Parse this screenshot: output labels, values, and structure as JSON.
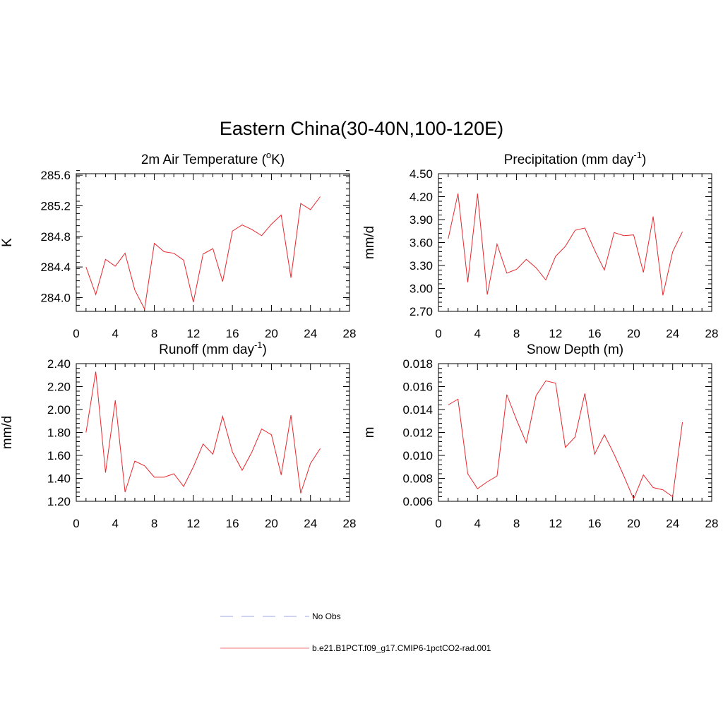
{
  "figure": {
    "title": "Eastern China(30-40N,100-120E)"
  },
  "chart_data": [
    {
      "id": "t2m",
      "type": "line",
      "title": "2m Air Temperature (",
      "title_sup": "o",
      "title_suffix": "K)",
      "xlabel": "",
      "ylabel": "K",
      "xlim": [
        0,
        28
      ],
      "ylim": [
        283.82,
        285.62
      ],
      "xticks": [
        0,
        4,
        8,
        12,
        16,
        20,
        24,
        28
      ],
      "yticks": [
        284.0,
        284.4,
        284.8,
        285.2,
        285.6
      ],
      "ytick_labels": [
        "284.0",
        "284.4",
        "284.8",
        "285.2",
        "285.6"
      ],
      "minor_x": 1,
      "minor_y": 0.08,
      "grid": false,
      "series": [
        {
          "color": "#e8282e",
          "x": [
            1,
            2,
            3,
            4,
            5,
            6,
            7,
            8,
            9,
            10,
            11,
            12,
            13,
            14,
            15,
            16,
            17,
            18,
            19,
            20,
            21,
            22,
            23,
            24,
            25
          ],
          "y": [
            284.4,
            284.04,
            284.5,
            284.41,
            284.58,
            284.1,
            283.85,
            284.71,
            284.6,
            284.58,
            284.49,
            283.94,
            284.57,
            284.64,
            284.21,
            284.87,
            284.95,
            284.89,
            284.81,
            284.96,
            285.08,
            284.26,
            285.23,
            285.15,
            285.32
          ]
        }
      ]
    },
    {
      "id": "precip",
      "type": "line",
      "title": "Precipitation (mm day",
      "title_sup": "-1",
      "title_suffix": ")",
      "xlabel": "",
      "ylabel": "mm/d",
      "xlim": [
        0,
        28
      ],
      "ylim": [
        2.7,
        4.5
      ],
      "xticks": [
        0,
        4,
        8,
        12,
        16,
        20,
        24,
        28
      ],
      "yticks": [
        2.7,
        3.0,
        3.3,
        3.6,
        3.9,
        4.2,
        4.5
      ],
      "ytick_labels": [
        "2.70",
        "3.00",
        "3.30",
        "3.60",
        "3.90",
        "4.20",
        "4.50"
      ],
      "minor_x": 1,
      "minor_y": 0.06,
      "grid": false,
      "series": [
        {
          "color": "#e8282e",
          "x": [
            1,
            2,
            3,
            4,
            5,
            6,
            7,
            8,
            9,
            10,
            11,
            12,
            13,
            14,
            15,
            16,
            17,
            18,
            19,
            20,
            21,
            22,
            23,
            24,
            25
          ],
          "y": [
            3.65,
            4.24,
            3.08,
            4.24,
            2.92,
            3.58,
            3.2,
            3.25,
            3.38,
            3.27,
            3.11,
            3.42,
            3.55,
            3.76,
            3.79,
            3.5,
            3.24,
            3.73,
            3.69,
            3.7,
            3.21,
            3.94,
            2.91,
            3.48,
            3.74
          ]
        }
      ]
    },
    {
      "id": "runoff",
      "type": "line",
      "title": "Runoff (mm day",
      "title_sup": "-1",
      "title_suffix": ")",
      "xlabel": "",
      "ylabel": "mm/d",
      "xlim": [
        0,
        28
      ],
      "ylim": [
        1.2,
        2.4
      ],
      "xticks": [
        0,
        4,
        8,
        12,
        16,
        20,
        24,
        28
      ],
      "yticks": [
        1.2,
        1.4,
        1.6,
        1.8,
        2.0,
        2.2,
        2.4
      ],
      "ytick_labels": [
        "1.20",
        "1.40",
        "1.60",
        "1.80",
        "2.00",
        "2.20",
        "2.40"
      ],
      "minor_x": 1,
      "minor_y": 0.04,
      "grid": false,
      "series": [
        {
          "color": "#e8282e",
          "x": [
            1,
            2,
            3,
            4,
            5,
            6,
            7,
            8,
            9,
            10,
            11,
            12,
            13,
            14,
            15,
            16,
            17,
            18,
            19,
            20,
            21,
            22,
            23,
            24,
            25
          ],
          "y": [
            1.8,
            2.33,
            1.45,
            2.08,
            1.28,
            1.55,
            1.51,
            1.41,
            1.41,
            1.44,
            1.33,
            1.5,
            1.7,
            1.61,
            1.94,
            1.63,
            1.47,
            1.63,
            1.83,
            1.78,
            1.43,
            1.95,
            1.27,
            1.53,
            1.66
          ]
        }
      ]
    },
    {
      "id": "snow",
      "type": "line",
      "title": "Snow Depth (m)",
      "title_sup": "",
      "title_suffix": "",
      "xlabel": "",
      "ylabel": "m",
      "xlim": [
        0,
        28
      ],
      "ylim": [
        0.006,
        0.018
      ],
      "xticks": [
        0,
        4,
        8,
        12,
        16,
        20,
        24,
        28
      ],
      "yticks": [
        0.006,
        0.008,
        0.01,
        0.012,
        0.014,
        0.016,
        0.018
      ],
      "ytick_labels": [
        "0.006",
        "0.008",
        "0.010",
        "0.012",
        "0.014",
        "0.016",
        "0.018"
      ],
      "minor_x": 1,
      "minor_y": 0.0004,
      "grid": false,
      "series": [
        {
          "color": "#e8282e",
          "x": [
            1,
            2,
            3,
            4,
            5,
            6,
            7,
            8,
            9,
            10,
            11,
            12,
            13,
            14,
            15,
            16,
            17,
            18,
            19,
            20,
            21,
            22,
            23,
            24,
            25
          ],
          "y": [
            0.0144,
            0.0149,
            0.0084,
            0.0071,
            0.0077,
            0.0082,
            0.0153,
            0.0131,
            0.0111,
            0.0152,
            0.0165,
            0.0163,
            0.0107,
            0.0116,
            0.0154,
            0.0101,
            0.0118,
            0.0101,
            0.0082,
            0.0062,
            0.0083,
            0.0072,
            0.007,
            0.0064,
            0.0129
          ]
        }
      ]
    }
  ],
  "legend": {
    "placement": "bottom-center",
    "items": [
      {
        "label": "No Obs",
        "color": "#a0a4e8",
        "style": "dashed"
      },
      {
        "label": "b.e21.B1PCT.f09_g17.CMIP6-1pctCO2-rad.001",
        "color": "#f07878",
        "style": "solid"
      }
    ]
  }
}
